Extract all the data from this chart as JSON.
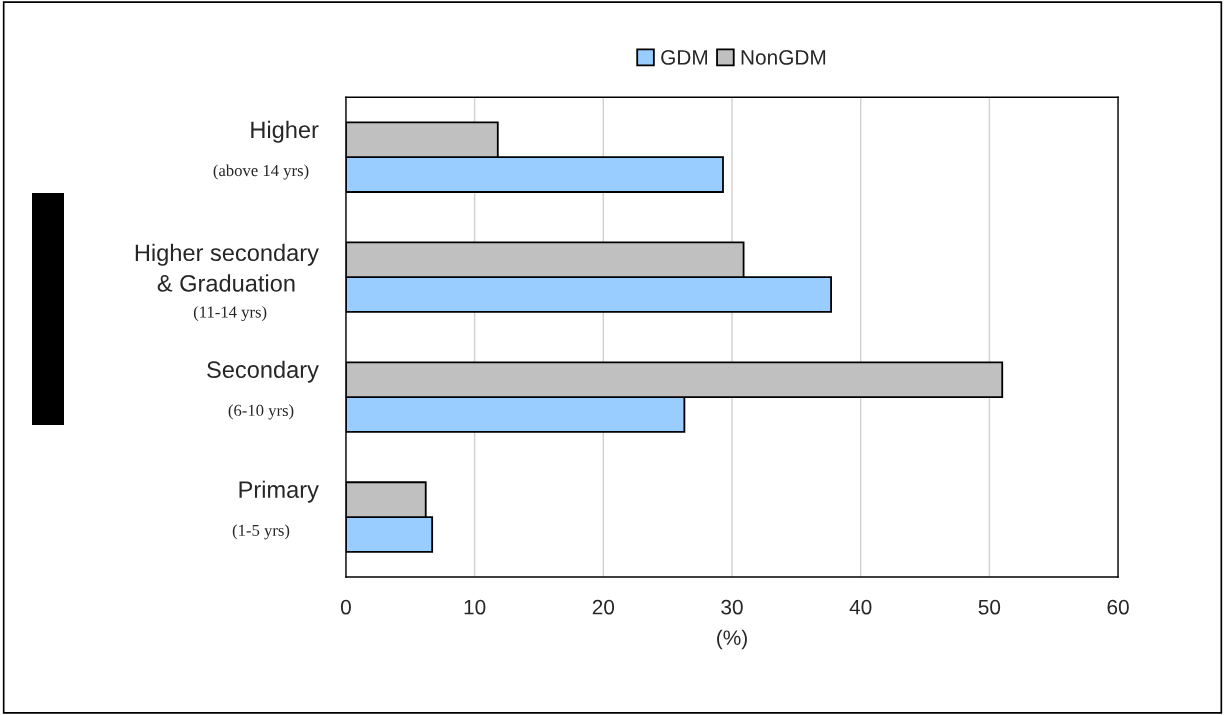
{
  "chart_data": {
    "type": "bar",
    "orientation": "horizontal",
    "categories": [
      "Higher\n(above 14 yrs)",
      "Higher secondary\n& Graduation\n(11-14 yrs)",
      "Secondary\n(6-10 yrs)",
      "Primary\n(1-5 yrs)"
    ],
    "series": [
      {
        "name": "GDM",
        "color": "#99ccff",
        "values": [
          29.3,
          37.7,
          26.3,
          6.7
        ]
      },
      {
        "name": "NonGDM",
        "color": "#c0c0c0",
        "values": [
          11.8,
          30.9,
          51.0,
          6.2
        ]
      }
    ],
    "xlabel": "(%)",
    "xlim": [
      0,
      60
    ],
    "xticks": [
      0,
      10,
      20,
      30,
      40,
      50,
      60
    ],
    "grid": "x",
    "legend": "top"
  }
}
